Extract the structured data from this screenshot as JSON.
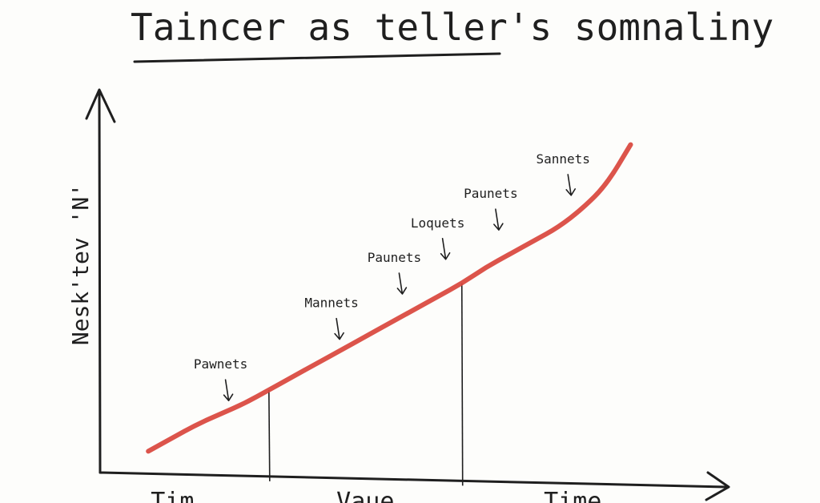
{
  "chart_data": {
    "type": "line",
    "title": "Taincer as teller's somnaliny",
    "ylabel": "Nesk'tev 'N'",
    "xlabel": "",
    "x_tick_labels": [
      "Tim",
      "Vaue",
      "Time"
    ],
    "x": [
      0,
      0.5,
      1,
      1.5,
      2,
      2.5,
      3,
      3.5,
      4,
      4.5,
      5,
      5.5,
      6,
      6.5,
      7,
      7.5,
      8,
      8.5,
      9,
      9.5,
      10
    ],
    "series": [
      {
        "values": [
          0.5,
          1.0,
          1.5,
          1.9,
          2.3,
          2.8,
          3.3,
          3.8,
          4.3,
          4.8,
          5.3,
          5.8,
          6.3,
          6.8,
          7.4,
          7.9,
          8.4,
          8.9,
          9.6,
          10.5,
          12.0
        ],
        "color": "#d9453c"
      }
    ],
    "xlim": [
      -1,
      12
    ],
    "ylim": [
      -0.3,
      14
    ],
    "reference_lines_x": [
      2.5,
      6.5
    ],
    "annotations": [
      {
        "text": "Pawnets",
        "x": 1.5,
        "y": 3.6
      },
      {
        "text": "Mannets",
        "x": 3.8,
        "y": 5.9
      },
      {
        "text": "Paunets",
        "x": 5.1,
        "y": 7.6
      },
      {
        "text": "Loquets",
        "x": 6.0,
        "y": 8.9
      },
      {
        "text": "Paunets",
        "x": 7.1,
        "y": 10.0
      },
      {
        "text": "Sannets",
        "x": 8.6,
        "y": 11.3
      }
    ],
    "grid": false,
    "legend": "none"
  }
}
